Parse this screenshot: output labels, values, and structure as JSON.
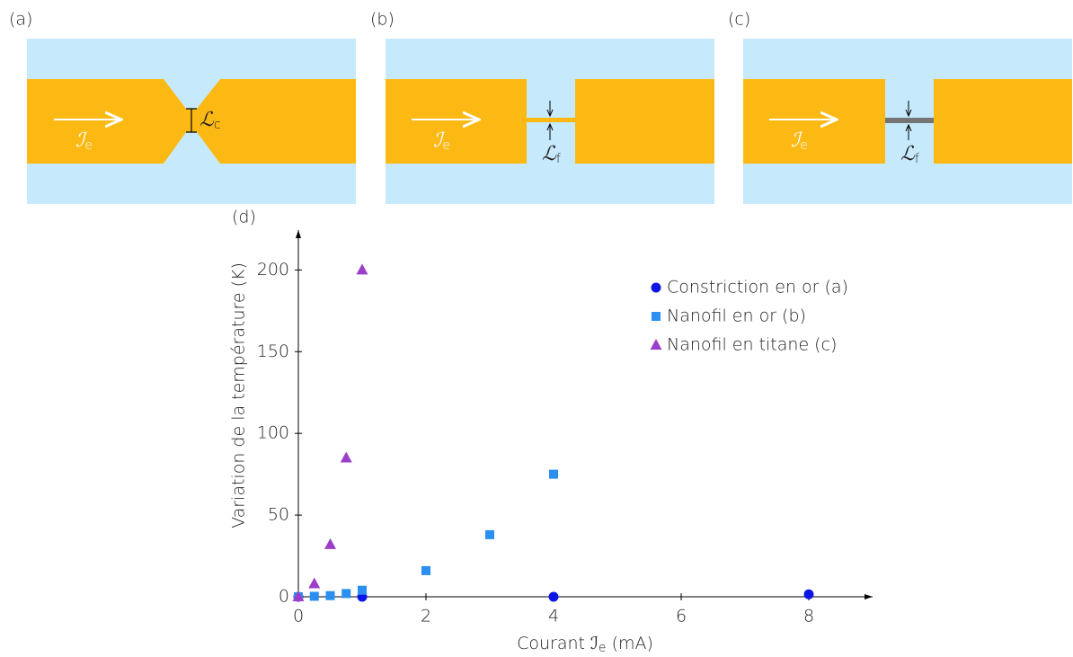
{
  "panels": [
    {
      "label": "(a)",
      "current": {
        "main": "ℐ",
        "sub": "e"
      },
      "dimension": {
        "main": "ℒ",
        "sub": "c"
      }
    },
    {
      "label": "(b)",
      "current": {
        "main": "ℐ",
        "sub": "e"
      },
      "dimension": {
        "main": "ℒ",
        "sub": "f"
      }
    },
    {
      "label": "(c)",
      "current": {
        "main": "ℐ",
        "sub": "e"
      },
      "dimension": {
        "main": "ℒ",
        "sub": "f"
      }
    }
  ],
  "chart_data": {
    "type": "scatter",
    "panel_label": "(d)",
    "xlabel": {
      "before": "Courant ℐ",
      "sub": "e",
      "after": " (mA)"
    },
    "ylabel": "Variation de la température (K)",
    "xlim": [
      0,
      9
    ],
    "ylim": [
      0,
      220
    ],
    "xticks": [
      0,
      2,
      4,
      6,
      8
    ],
    "yticks": [
      0,
      50,
      100,
      150,
      200
    ],
    "grid": false,
    "series": [
      {
        "name": "Constriction en or (a)",
        "color": "#0b16e6",
        "marker": "circle",
        "x": [
          0,
          1,
          4,
          8
        ],
        "values": [
          0,
          0,
          0,
          1.5
        ]
      },
      {
        "name": "Nanofil en or (b)",
        "color": "#2a8ff0",
        "marker": "square",
        "x": [
          0,
          0.25,
          0.5,
          0.75,
          1,
          2,
          3,
          4
        ],
        "values": [
          0,
          0.3,
          0.7,
          2,
          4,
          16,
          38,
          75
        ]
      },
      {
        "name": "Nanofil en titane (c)",
        "color": "#9b3fca",
        "marker": "triangle",
        "x": [
          0,
          0.25,
          0.5,
          0.75,
          1
        ],
        "values": [
          0,
          8,
          32,
          85,
          200
        ]
      }
    ]
  }
}
